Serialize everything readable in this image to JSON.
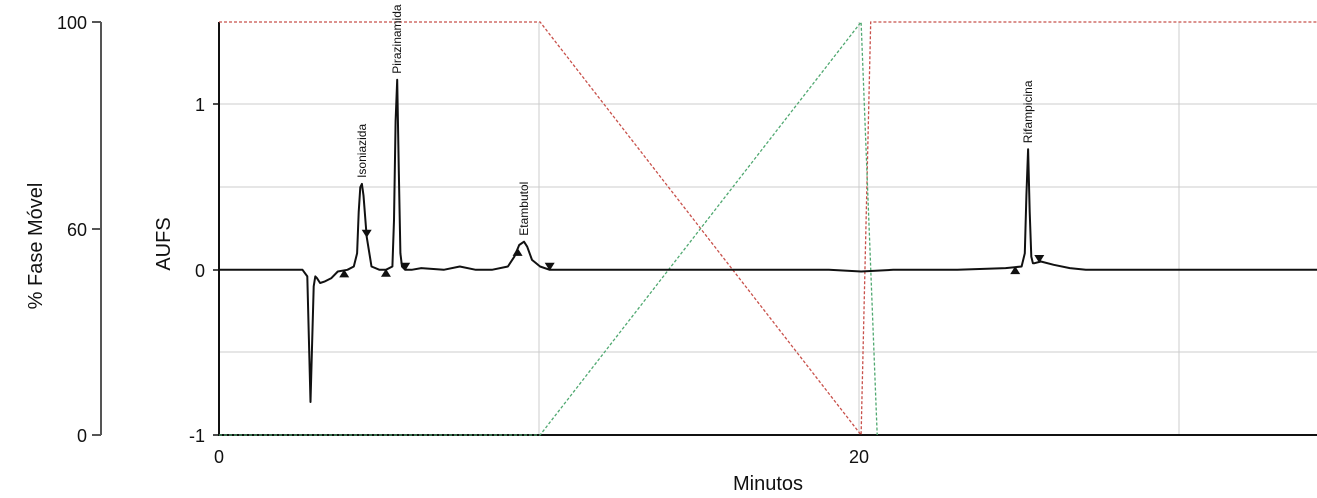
{
  "chart_data": {
    "type": "line",
    "xlabel": "Minutos",
    "ylabel_right": "AUFS",
    "ylabel_left": "% Fase Móvel",
    "xlim": [
      0,
      34.2
    ],
    "ylim_aufs": [
      -1,
      1.5
    ],
    "ylim_percent": [
      0,
      100
    ],
    "x_ticks": [
      {
        "value": 0,
        "label": "0"
      },
      {
        "value": 20,
        "label": "20"
      }
    ],
    "aufs_ticks": [
      {
        "value": 1,
        "label": "1"
      },
      {
        "value": 0,
        "label": "0"
      },
      {
        "value": -1,
        "label": "-1"
      }
    ],
    "percent_ticks": [
      {
        "value": 100,
        "label": "100"
      },
      {
        "value": 60,
        "label": "60"
      },
      {
        "value": 0,
        "label": "0"
      }
    ],
    "grid": true,
    "colors": {
      "trace": "#111111",
      "grid": "#cccccc",
      "red_series": "#c8504a",
      "green_series": "#4fa870"
    },
    "chromatogram": {
      "x": [
        0,
        2.6,
        2.75,
        2.8,
        2.85,
        2.9,
        2.95,
        3.0,
        3.05,
        3.15,
        3.3,
        3.5,
        3.7,
        4.0,
        4.2,
        4.3,
        4.35,
        4.4,
        4.45,
        4.5,
        4.6,
        4.75,
        5.0,
        5.2,
        5.4,
        5.45,
        5.5,
        5.55,
        5.6,
        5.65,
        5.7,
        5.8,
        6.0,
        6.3,
        7.0,
        7.5,
        8.0,
        8.5,
        9.0,
        9.2,
        9.35,
        9.5,
        9.6,
        9.75,
        10.0,
        10.3,
        11,
        14,
        17,
        19,
        20,
        21,
        23,
        24.5,
        25.0,
        25.1,
        25.15,
        25.2,
        25.25,
        25.3,
        25.35,
        25.4,
        25.6,
        26.0,
        26.5,
        27,
        30,
        34.2
      ],
      "y": [
        0,
        0,
        -0.04,
        -0.42,
        -0.8,
        -0.45,
        -0.1,
        -0.04,
        -0.05,
        -0.08,
        -0.07,
        -0.05,
        -0.01,
        0,
        0.02,
        0.1,
        0.35,
        0.5,
        0.52,
        0.45,
        0.2,
        0.02,
        0,
        0,
        0.02,
        0.3,
        0.9,
        1.15,
        0.6,
        0.1,
        0.02,
        0,
        0,
        0.01,
        0,
        0.02,
        0,
        0,
        0.02,
        0.08,
        0.15,
        0.17,
        0.14,
        0.06,
        0.02,
        0,
        0,
        0,
        0,
        0,
        -0.01,
        0,
        0,
        0.01,
        0.02,
        0.1,
        0.45,
        0.73,
        0.35,
        0.08,
        0.04,
        0.04,
        0.05,
        0.03,
        0.01,
        0,
        0,
        0
      ]
    },
    "mobile_phase_red": {
      "x": [
        0,
        10,
        20,
        20.3,
        34.2
      ],
      "y": [
        100,
        100,
        0,
        100,
        100
      ]
    },
    "mobile_phase_green": {
      "x": [
        0,
        10,
        20,
        20.5
      ],
      "y": [
        0,
        0,
        100,
        0
      ]
    },
    "peaks": [
      {
        "name": "Isoniazida",
        "rt": 4.45,
        "start": 3.9,
        "end": 4.6
      },
      {
        "name": "Pirazinamida",
        "rt": 5.55,
        "start": 5.2,
        "end": 5.8
      },
      {
        "name": "Etambutol",
        "rt": 9.5,
        "start": 9.3,
        "end": 10.3
      },
      {
        "name": "Rifampicina",
        "rt": 25.2,
        "start": 24.8,
        "end": 25.55
      }
    ]
  }
}
